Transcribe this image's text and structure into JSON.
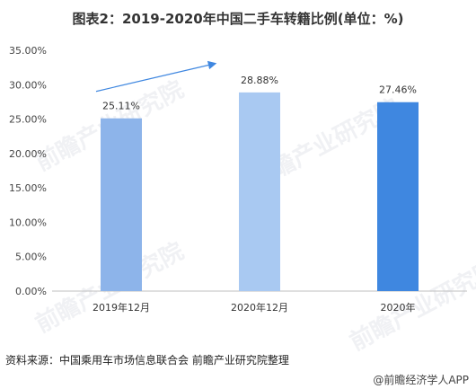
{
  "title": "图表2：2019-2020年中国二手车转籍比例(单位：%)",
  "source": "资料来源：中国乘用车市场信息联合会 前瞻产业研究院整理",
  "brand": "@前瞻经济学人APP",
  "watermark": "前瞻产业研究院",
  "chart_data": {
    "type": "bar",
    "categories": [
      "2019年12月",
      "2020年12月",
      "2020年"
    ],
    "values": [
      25.11,
      28.88,
      27.46
    ],
    "value_labels": [
      "25.11%",
      "28.88%",
      "27.46%"
    ],
    "colors": [
      "#8db4ea",
      "#a9c9f2",
      "#3f87e0"
    ],
    "arrow_color": "#3f87e0",
    "ylim": [
      0,
      35
    ],
    "yticks": [
      "0.00%",
      "5.00%",
      "10.00%",
      "15.00%",
      "20.00%",
      "25.00%",
      "30.00%",
      "35.00%"
    ],
    "ytick_values": [
      0,
      5,
      10,
      15,
      20,
      25,
      30,
      35
    ],
    "grid": false,
    "xlabel": "",
    "ylabel": ""
  }
}
